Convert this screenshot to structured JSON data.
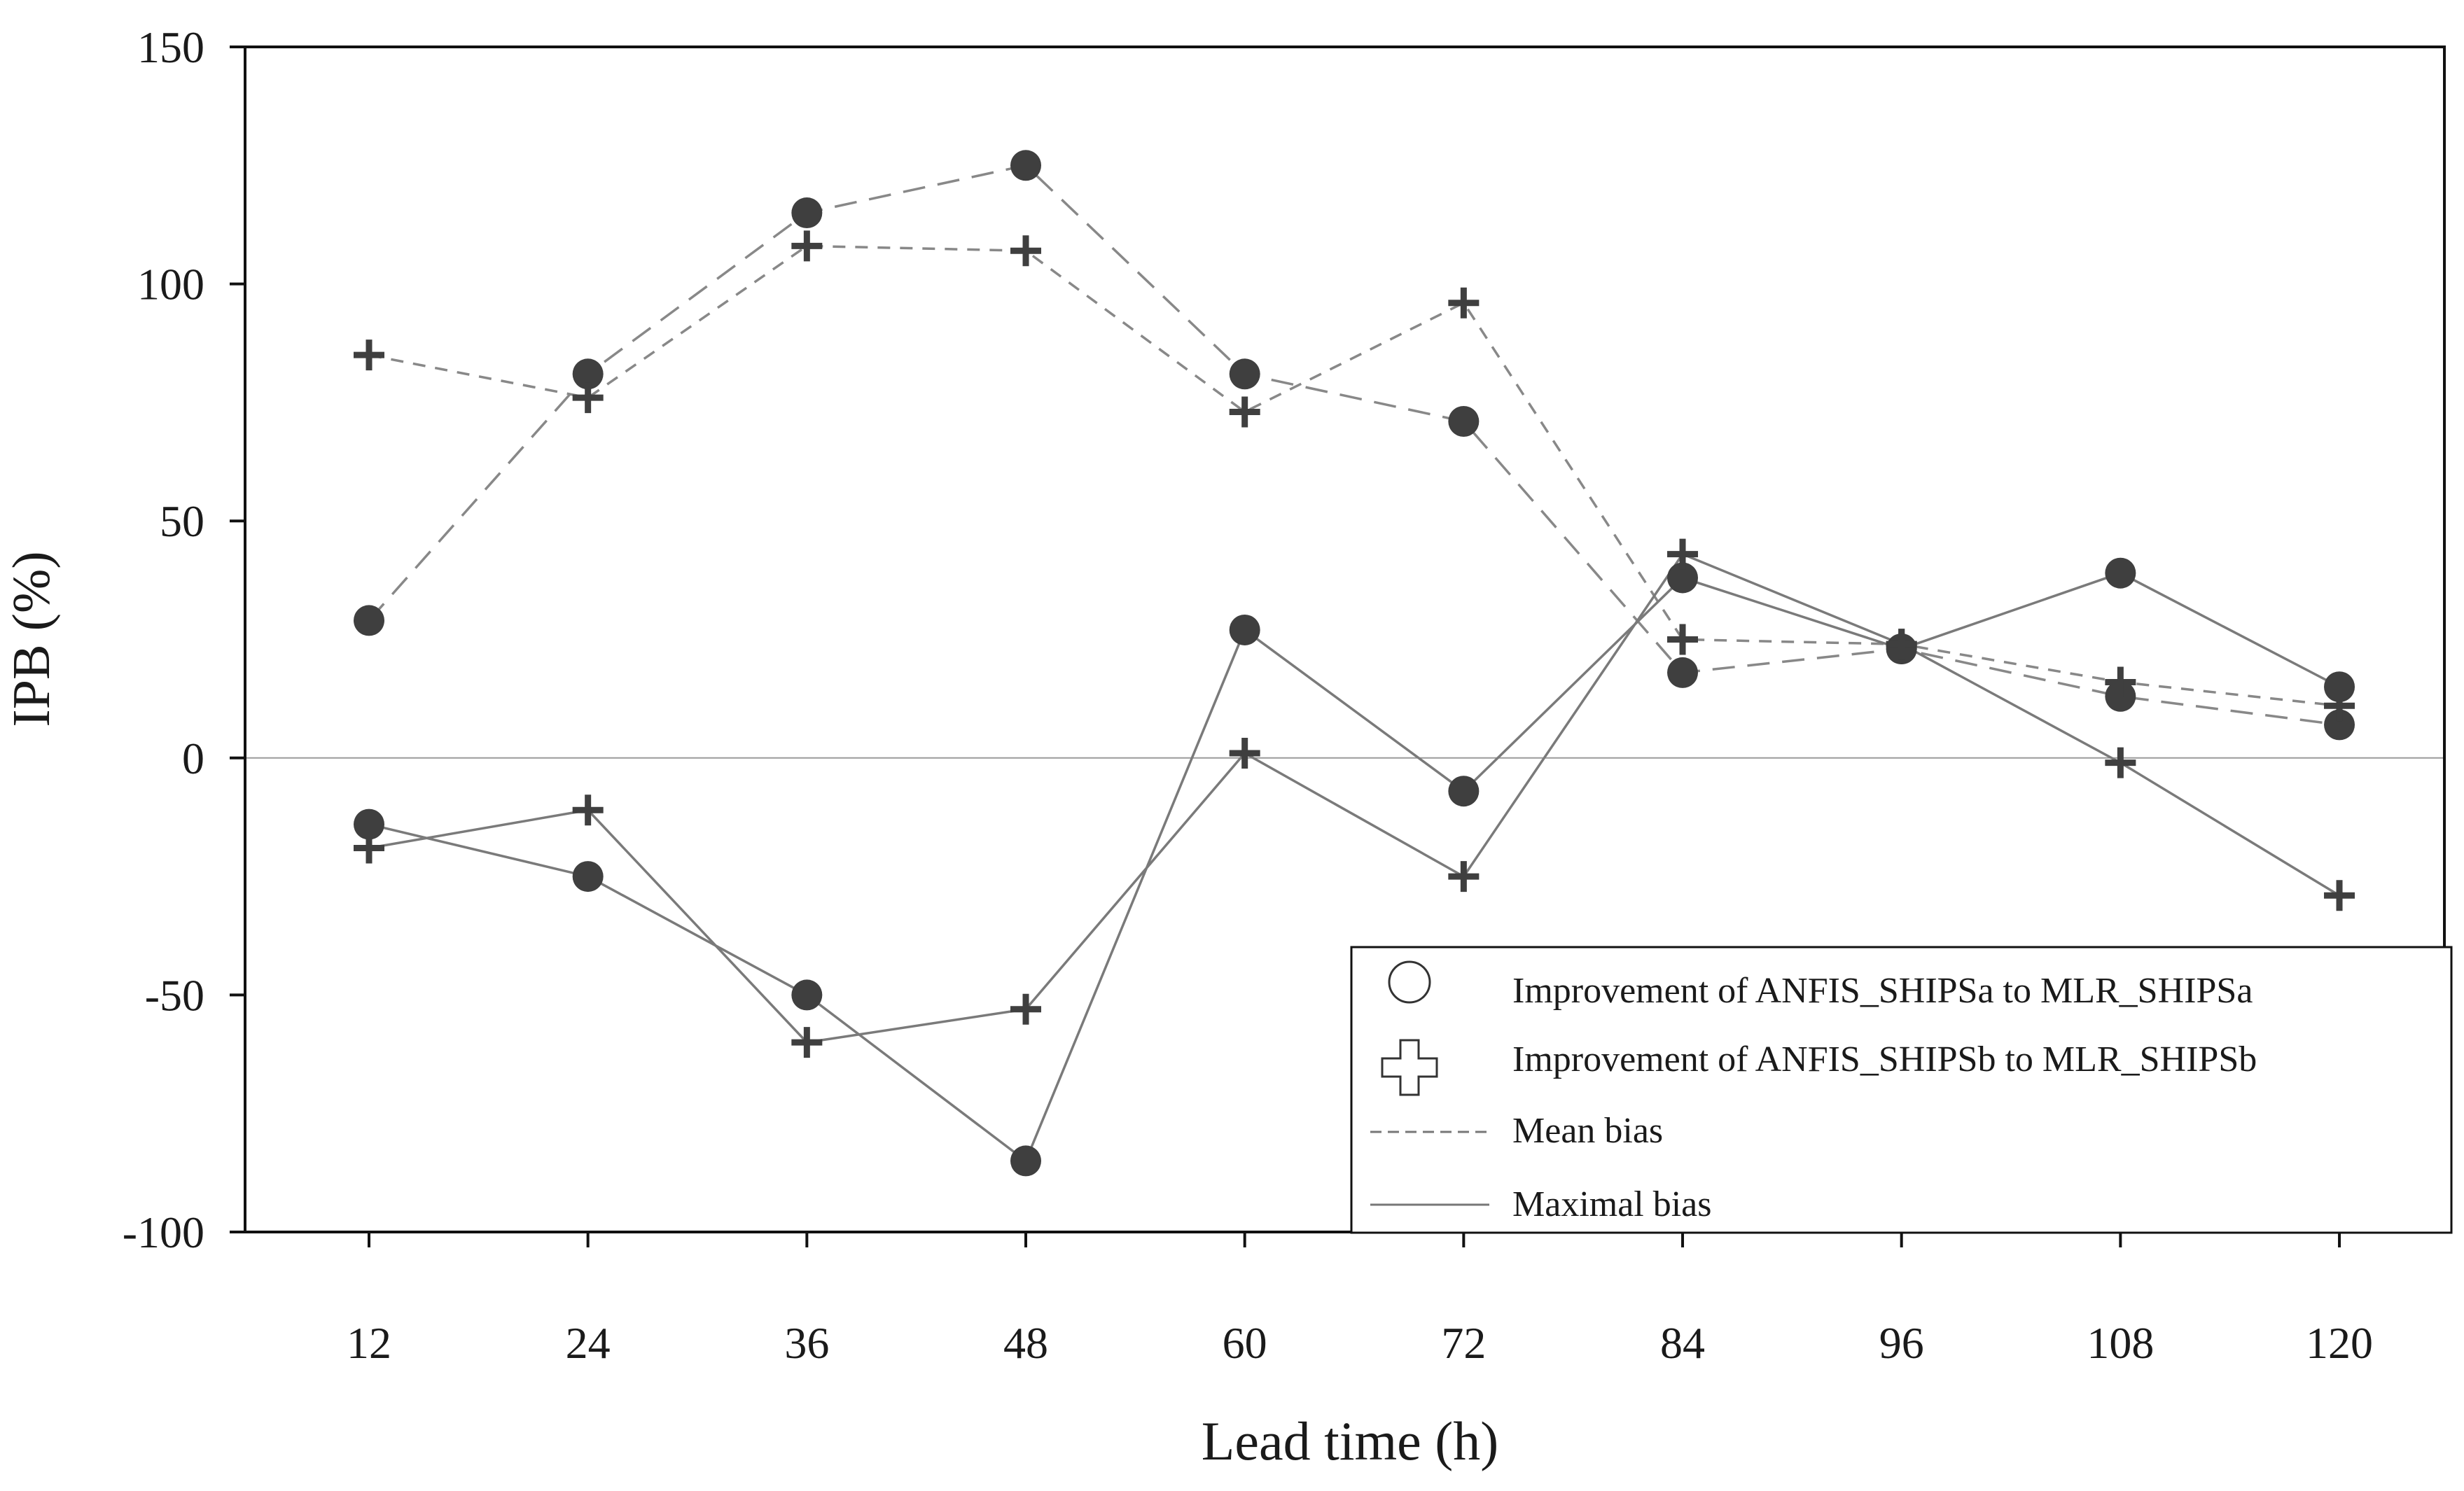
{
  "chart_data": {
    "type": "line",
    "title": "",
    "xlabel": "Lead time (h)",
    "ylabel": "IPB (%)",
    "x": [
      12,
      24,
      36,
      48,
      60,
      72,
      84,
      96,
      108,
      120
    ],
    "xticks": [
      "12",
      "24",
      "36",
      "48",
      "60",
      "72",
      "84",
      "96",
      "108",
      "120"
    ],
    "ylim": [
      -100,
      150
    ],
    "yticks": [
      -100,
      -50,
      0,
      50,
      100,
      150
    ],
    "grid": false,
    "zero_line": true,
    "legend_position": "bottom-right",
    "series": [
      {
        "name": "Improvement of ANFIS_SHIPSa to MLR_SHIPSa — Mean bias",
        "marker": "circle",
        "line_style": "long-dash",
        "values": [
          29,
          81,
          115,
          125,
          81,
          71,
          18,
          23,
          13,
          7
        ]
      },
      {
        "name": "Improvement of ANFIS_SHIPSb to MLR_SHIPSb — Mean bias",
        "marker": "plus",
        "line_style": "short-dash",
        "values": [
          85,
          76,
          108,
          107,
          73,
          96,
          25,
          24,
          16,
          11
        ]
      },
      {
        "name": "Improvement of ANFIS_SHIPSa to MLR_SHIPSa — Maximal bias",
        "marker": "circle",
        "line_style": "solid",
        "values": [
          -14,
          -25,
          -50,
          -85,
          27,
          -7,
          38,
          23,
          39,
          15
        ]
      },
      {
        "name": "Improvement of ANFIS_SHIPSb to MLR_SHIPSb — Maximal bias",
        "marker": "plus",
        "line_style": "solid",
        "values": [
          -19,
          -11,
          -60,
          -53,
          1,
          -25,
          43,
          24,
          -1,
          -29
        ]
      }
    ],
    "legend": [
      {
        "symbol": "circle",
        "label": "Improvement of ANFIS_SHIPSa to MLR_SHIPSa"
      },
      {
        "symbol": "plus",
        "label": "Improvement of ANFIS_SHIPSb to MLR_SHIPSb"
      },
      {
        "symbol": "dash",
        "label": "Mean bias"
      },
      {
        "symbol": "solid",
        "label": "Maximal bias"
      }
    ],
    "colors": {
      "marker": "#3f3f3f",
      "mean_line": "#888888",
      "max_line": "#7a7a7a",
      "axis": "#111111",
      "zero_line": "#9a9a9a"
    }
  }
}
